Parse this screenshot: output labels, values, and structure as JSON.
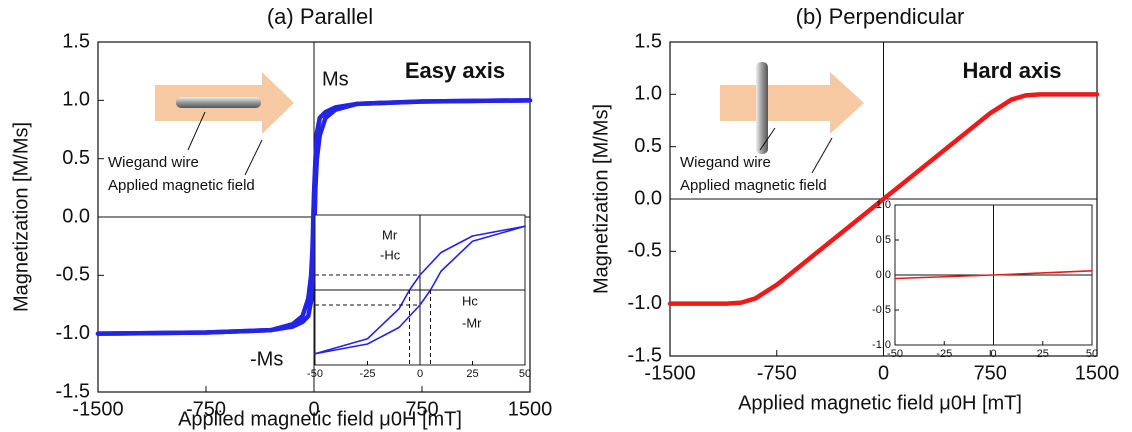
{
  "chart_data": [
    {
      "type": "line",
      "title": "(a) Parallel",
      "xlabel": "Applied magnetic field μ0H [mT]",
      "ylabel": "Magnetization [M/Ms]",
      "xlim": [
        -1500,
        1500
      ],
      "xticks": [
        -1500,
        -750,
        0,
        750,
        1500
      ],
      "ylim": [
        -1.5,
        1.5
      ],
      "yticks": [
        1.5,
        {
          "value": 1,
          "label": "1.0"
        },
        0.5,
        {
          "value": 0,
          "label": "0.0"
        },
        -0.5,
        {
          "value": -1,
          "label": "-1.0"
        },
        -1.5
      ],
      "series": [
        {
          "color": "#2424e6",
          "x": [
            1500,
            750,
            300,
            150,
            80,
            40,
            20,
            10,
            0,
            -5,
            -10,
            -20,
            -40,
            -80,
            -150,
            -300,
            -750,
            -1500
          ],
          "values": [
            1,
            0.99,
            0.97,
            0.94,
            0.9,
            0.85,
            0.72,
            0.5,
            0.2,
            0,
            -0.25,
            -0.5,
            -0.7,
            -0.85,
            -0.92,
            -0.97,
            -0.99,
            -1
          ]
        },
        {
          "color": "#2424e6",
          "x": [
            -1500,
            -750,
            -300,
            -150,
            -80,
            -40,
            -20,
            -10,
            0,
            5,
            10,
            20,
            40,
            80,
            150,
            300,
            750,
            1500
          ],
          "values": [
            -1,
            -0.99,
            -0.97,
            -0.94,
            -0.9,
            -0.85,
            -0.72,
            -0.5,
            -0.2,
            0,
            0.25,
            0.5,
            0.7,
            0.85,
            0.92,
            0.97,
            0.99,
            1
          ]
        }
      ],
      "annotations": [
        "Easy axis",
        "Ms",
        "-Ms",
        "Wiegand wire",
        "Applied magnetic field"
      ],
      "inset": {
        "xlim": [
          -50,
          50
        ],
        "xticks": [
          -50,
          -25,
          0,
          25,
          50
        ],
        "ylim": [
          -1,
          1
        ],
        "series": [
          {
            "color": "#2424e6",
            "x": [
              50,
              25,
              10,
              0,
              -5,
              -10,
              -25,
              -50
            ],
            "values": [
              0.85,
              0.72,
              0.5,
              0.2,
              0,
              -0.25,
              -0.65,
              -0.85
            ]
          },
          {
            "color": "#2424e6",
            "x": [
              -50,
              -25,
              -10,
              0,
              5,
              10,
              25,
              50
            ],
            "values": [
              -0.85,
              -0.72,
              -0.5,
              -0.2,
              0,
              0.25,
              0.65,
              0.85
            ]
          }
        ],
        "annotations": [
          "Mr",
          "-Hc",
          "Hc",
          "-Mr"
        ]
      }
    },
    {
      "type": "line",
      "title": "(b) Perpendicular",
      "xlabel": "Applied magnetic field μ0H [mT]",
      "ylabel": "Magnetization [M/Ms]",
      "xlim": [
        -1500,
        1500
      ],
      "xticks": [
        -1500,
        -750,
        0,
        750,
        1500
      ],
      "ylim": [
        -1.5,
        1.5
      ],
      "yticks": [
        1.5,
        {
          "value": 1,
          "label": "1.0"
        },
        0.5,
        {
          "value": 0,
          "label": "0.0"
        },
        -0.5,
        {
          "value": -1,
          "label": "-1.0"
        },
        -1.5
      ],
      "series": [
        {
          "color": "#ee1a1a",
          "x": [
            -1500,
            -1100,
            -1000,
            -900,
            -750,
            0,
            750,
            900,
            1000,
            1100,
            1500
          ],
          "values": [
            -1,
            -1,
            -0.99,
            -0.95,
            -0.82,
            0,
            0.82,
            0.95,
            0.99,
            1,
            1
          ]
        }
      ],
      "annotations": [
        "Hard axis",
        "Wiegand wire",
        "Applied magnetic field"
      ],
      "inset": {
        "xlim": [
          -50,
          50
        ],
        "xticks": [
          -50,
          -25,
          0,
          25,
          50
        ],
        "ylim": [
          -1,
          1
        ],
        "yticks": [
          {
            "value": 1,
            "label": "1.0"
          },
          0.5,
          {
            "value": 0,
            "label": "0.0"
          },
          -0.5,
          {
            "value": -1,
            "label": "-1.0"
          }
        ],
        "series": [
          {
            "color": "#ee1a1a",
            "x": [
              -50,
              0,
              50
            ],
            "values": [
              -0.05,
              0,
              0.06
            ]
          }
        ]
      }
    }
  ]
}
